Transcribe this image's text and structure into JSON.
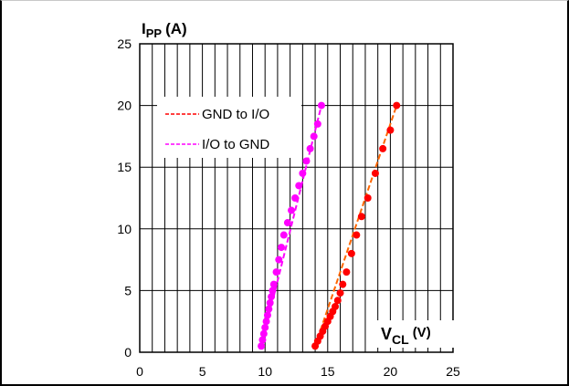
{
  "chart_data": {
    "type": "scatter",
    "xlabel_main": "V",
    "xlabel_sub": "CL",
    "xlabel_unit": "(V)",
    "ylabel_main": "I",
    "ylabel_sub": "PP",
    "ylabel_unit": "(A)",
    "xlim": [
      0,
      25
    ],
    "ylim": [
      0,
      25
    ],
    "x_ticks": [
      "0",
      "5",
      "10",
      "15",
      "20",
      "25"
    ],
    "y_ticks": [
      "0",
      "5",
      "10",
      "15",
      "20",
      "25"
    ],
    "grid": true,
    "legend_position": "upper-left",
    "series": [
      {
        "name": "GND to I/O",
        "color": "#ff0000",
        "line_color": "#ff6600",
        "x": [
          14.0,
          14.2,
          14.4,
          14.6,
          14.8,
          15.0,
          15.2,
          15.4,
          15.6,
          15.8,
          16.0,
          16.2,
          16.5,
          16.9,
          17.3,
          17.7,
          18.2,
          18.8,
          19.4,
          20.0,
          20.5
        ],
        "y": [
          0.5,
          0.9,
          1.3,
          1.7,
          2.1,
          2.5,
          2.9,
          3.3,
          3.7,
          4.2,
          4.8,
          5.5,
          6.5,
          8.0,
          9.5,
          11.0,
          12.5,
          14.5,
          16.5,
          18.0,
          20.0
        ]
      },
      {
        "name": "I/O to GND",
        "color": "#ff00ff",
        "line_color": "#ff00ff",
        "x": [
          9.7,
          9.8,
          9.9,
          10.0,
          10.1,
          10.2,
          10.3,
          10.4,
          10.5,
          10.6,
          10.7,
          10.9,
          11.1,
          11.3,
          11.5,
          11.8,
          12.1,
          12.4,
          12.7,
          13.0,
          13.3,
          13.6,
          13.9,
          14.2,
          14.5
        ],
        "y": [
          0.5,
          1.0,
          1.5,
          2.0,
          2.5,
          3.0,
          3.5,
          4.0,
          4.5,
          5.0,
          5.5,
          6.5,
          7.5,
          8.5,
          9.5,
          10.5,
          11.5,
          12.5,
          13.5,
          14.5,
          15.5,
          16.5,
          17.5,
          18.5,
          20.0
        ]
      }
    ]
  }
}
